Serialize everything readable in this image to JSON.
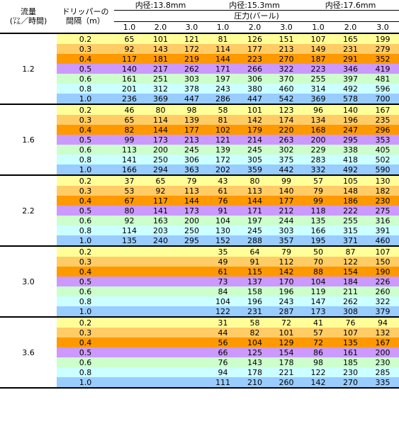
{
  "header": {
    "flow_label_line1": "流量",
    "flow_label_line2": "(㍑／時間)",
    "spacing_label_line1": "ドリッパーの",
    "spacing_label_line2": "間隔（m）",
    "diameters": [
      "内径:13.8mm",
      "内径:15.3mm",
      "内径:17.6mm"
    ],
    "pressure_label": "圧力(バール)",
    "pressure_values": [
      "1.0",
      "2.0",
      "3.0",
      "1.0",
      "2.0",
      "3.0",
      "1.0",
      "2.0",
      "3.0"
    ]
  },
  "row_colors": [
    "#ffff99",
    "#ffcc66",
    "#ff9900",
    "#cc99ff",
    "#ccffcc",
    "#ccffff",
    "#99ccff"
  ],
  "groups": [
    {
      "flow": "1.2",
      "rows": [
        {
          "spacing": "0.2",
          "values": [
            "65",
            "101",
            "121",
            "81",
            "126",
            "151",
            "107",
            "165",
            "199"
          ]
        },
        {
          "spacing": "0.3",
          "values": [
            "92",
            "143",
            "172",
            "114",
            "177",
            "213",
            "149",
            "231",
            "279"
          ]
        },
        {
          "spacing": "0.4",
          "values": [
            "117",
            "181",
            "219",
            "144",
            "223",
            "270",
            "187",
            "291",
            "352"
          ]
        },
        {
          "spacing": "0.5",
          "values": [
            "140",
            "217",
            "262",
            "171",
            "266",
            "322",
            "223",
            "346",
            "419"
          ]
        },
        {
          "spacing": "0.6",
          "values": [
            "161",
            "251",
            "303",
            "197",
            "306",
            "370",
            "255",
            "397",
            "481"
          ]
        },
        {
          "spacing": "0.8",
          "values": [
            "201",
            "312",
            "378",
            "243",
            "380",
            "460",
            "314",
            "492",
            "596"
          ]
        },
        {
          "spacing": "1.0",
          "values": [
            "236",
            "369",
            "447",
            "286",
            "447",
            "542",
            "369",
            "578",
            "700"
          ]
        }
      ]
    },
    {
      "flow": "1.6",
      "rows": [
        {
          "spacing": "0.2",
          "values": [
            "46",
            "80",
            "98",
            "58",
            "101",
            "123",
            "96",
            "140",
            "167"
          ]
        },
        {
          "spacing": "0.3",
          "values": [
            "65",
            "114",
            "139",
            "81",
            "142",
            "174",
            "134",
            "196",
            "235"
          ]
        },
        {
          "spacing": "0.4",
          "values": [
            "82",
            "144",
            "177",
            "102",
            "179",
            "220",
            "168",
            "247",
            "296"
          ]
        },
        {
          "spacing": "0.5",
          "values": [
            "99",
            "173",
            "213",
            "121",
            "214",
            "263",
            "200",
            "295",
            "353"
          ]
        },
        {
          "spacing": "0.6",
          "values": [
            "113",
            "200",
            "245",
            "139",
            "245",
            "302",
            "229",
            "338",
            "405"
          ]
        },
        {
          "spacing": "0.8",
          "values": [
            "141",
            "250",
            "306",
            "172",
            "305",
            "375",
            "283",
            "418",
            "502"
          ]
        },
        {
          "spacing": "1.0",
          "values": [
            "166",
            "294",
            "363",
            "202",
            "359",
            "442",
            "332",
            "492",
            "590"
          ]
        }
      ]
    },
    {
      "flow": "2.2",
      "rows": [
        {
          "spacing": "0.2",
          "values": [
            "37",
            "65",
            "79",
            "43",
            "80",
            "99",
            "57",
            "105",
            "130"
          ]
        },
        {
          "spacing": "0.3",
          "values": [
            "53",
            "92",
            "113",
            "61",
            "113",
            "140",
            "79",
            "148",
            "182"
          ]
        },
        {
          "spacing": "0.4",
          "values": [
            "67",
            "117",
            "144",
            "76",
            "144",
            "177",
            "99",
            "186",
            "230"
          ]
        },
        {
          "spacing": "0.5",
          "values": [
            "80",
            "141",
            "173",
            "91",
            "171",
            "212",
            "118",
            "222",
            "275"
          ]
        },
        {
          "spacing": "0.6",
          "values": [
            "92",
            "163",
            "200",
            "104",
            "197",
            "244",
            "135",
            "255",
            "316"
          ]
        },
        {
          "spacing": "0.8",
          "values": [
            "114",
            "203",
            "250",
            "130",
            "245",
            "303",
            "166",
            "315",
            "391"
          ]
        },
        {
          "spacing": "1.0",
          "values": [
            "135",
            "240",
            "295",
            "152",
            "288",
            "357",
            "195",
            "371",
            "460"
          ]
        }
      ]
    },
    {
      "flow": "3.0",
      "rows": [
        {
          "spacing": "0.2",
          "values": [
            "",
            "",
            "",
            "35",
            "64",
            "79",
            "50",
            "87",
            "107"
          ]
        },
        {
          "spacing": "0.3",
          "values": [
            "",
            "",
            "",
            "49",
            "91",
            "112",
            "70",
            "122",
            "150"
          ]
        },
        {
          "spacing": "0.4",
          "values": [
            "",
            "",
            "",
            "61",
            "115",
            "142",
            "88",
            "154",
            "190"
          ]
        },
        {
          "spacing": "0.5",
          "values": [
            "",
            "",
            "",
            "73",
            "137",
            "170",
            "104",
            "184",
            "226"
          ]
        },
        {
          "spacing": "0.6",
          "values": [
            "",
            "",
            "",
            "84",
            "158",
            "196",
            "119",
            "211",
            "260"
          ]
        },
        {
          "spacing": "0.8",
          "values": [
            "",
            "",
            "",
            "104",
            "196",
            "243",
            "147",
            "262",
            "322"
          ]
        },
        {
          "spacing": "1.0",
          "values": [
            "",
            "",
            "",
            "122",
            "231",
            "287",
            "173",
            "308",
            "379"
          ]
        }
      ]
    },
    {
      "flow": "3.6",
      "rows": [
        {
          "spacing": "0.2",
          "values": [
            "",
            "",
            "",
            "31",
            "58",
            "72",
            "41",
            "76",
            "94"
          ]
        },
        {
          "spacing": "0.3",
          "values": [
            "",
            "",
            "",
            "44",
            "82",
            "101",
            "57",
            "107",
            "132"
          ]
        },
        {
          "spacing": "0.4",
          "values": [
            "",
            "",
            "",
            "56",
            "104",
            "129",
            "72",
            "135",
            "167"
          ]
        },
        {
          "spacing": "0.5",
          "values": [
            "",
            "",
            "",
            "66",
            "125",
            "154",
            "86",
            "161",
            "200"
          ]
        },
        {
          "spacing": "0.6",
          "values": [
            "",
            "",
            "",
            "76",
            "143",
            "178",
            "98",
            "185",
            "230"
          ]
        },
        {
          "spacing": "0.8",
          "values": [
            "",
            "",
            "",
            "94",
            "178",
            "221",
            "122",
            "230",
            "285"
          ]
        },
        {
          "spacing": "1.0",
          "values": [
            "",
            "",
            "",
            "111",
            "210",
            "260",
            "142",
            "270",
            "335"
          ]
        }
      ]
    }
  ]
}
